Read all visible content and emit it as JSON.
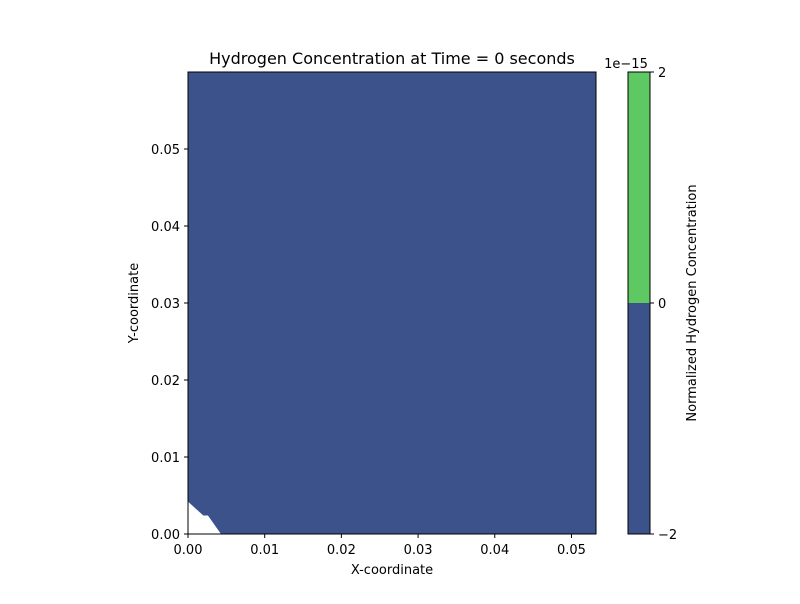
{
  "chart_data": {
    "type": "heatmap",
    "title": "Hydrogen Concentration at Time = 0 seconds",
    "xlabel": "X-coordinate",
    "ylabel": "Y-coordinate",
    "xlim": [
      0.0,
      0.0532
    ],
    "ylim": [
      0.0,
      0.06
    ],
    "x_ticks": [
      "0.00",
      "0.01",
      "0.02",
      "0.03",
      "0.04",
      "0.05"
    ],
    "x_tick_values": [
      0.0,
      0.01,
      0.02,
      0.03,
      0.04,
      0.05
    ],
    "y_ticks": [
      "0.00",
      "0.01",
      "0.02",
      "0.03",
      "0.04",
      "0.05"
    ],
    "y_tick_values": [
      0.0,
      0.01,
      0.02,
      0.03,
      0.04,
      0.05
    ],
    "fill_color": "#3b528b",
    "uncovered_region": {
      "description": "empty",
      "polygon": [
        [
          0.0,
          0.0
        ],
        [
          0.0,
          0.0042
        ],
        [
          0.002,
          0.0024
        ],
        [
          0.0026,
          0.0024
        ],
        [
          0.0043,
          0.0
        ]
      ]
    },
    "colorbar": {
      "label": "Normalized Hydrogen Concentration",
      "offset_text": "1e−15",
      "tick_labels": [
        "2",
        "0",
        "−2"
      ],
      "tick_values": [
        2,
        0,
        -2
      ],
      "range": [
        -2,
        2
      ],
      "levels": [
        {
          "from": -2,
          "to": 0,
          "color": "#3b528b"
        },
        {
          "from": 0,
          "to": 2,
          "color": "#5ec962"
        }
      ]
    },
    "grid": false
  }
}
